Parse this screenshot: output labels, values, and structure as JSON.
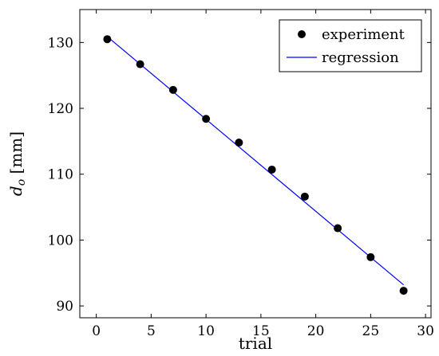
{
  "chart_data": {
    "type": "scatter",
    "xlabel": "trial",
    "ylabel": {
      "symbol": "d",
      "subscript": "o",
      "unit": "[mm]"
    },
    "xlim": [
      -1.5,
      30.5
    ],
    "ylim": [
      88.2,
      135
    ],
    "x_ticks": [
      0,
      5,
      10,
      15,
      20,
      25,
      30
    ],
    "y_ticks": [
      90,
      100,
      110,
      120,
      130
    ],
    "legend_position": "top-right",
    "series": [
      {
        "name": "experiment",
        "kind": "markers",
        "color": "#000000",
        "x": [
          1,
          4,
          7,
          10,
          13,
          16,
          19,
          22,
          25,
          28
        ],
        "y": [
          130.5,
          126.7,
          122.8,
          118.4,
          114.8,
          110.7,
          106.6,
          101.8,
          97.4,
          92.3
        ]
      },
      {
        "name": "regression",
        "kind": "line",
        "color": "#0000ff",
        "x": [
          1,
          28
        ],
        "y": [
          130.9,
          93.2
        ]
      }
    ]
  }
}
